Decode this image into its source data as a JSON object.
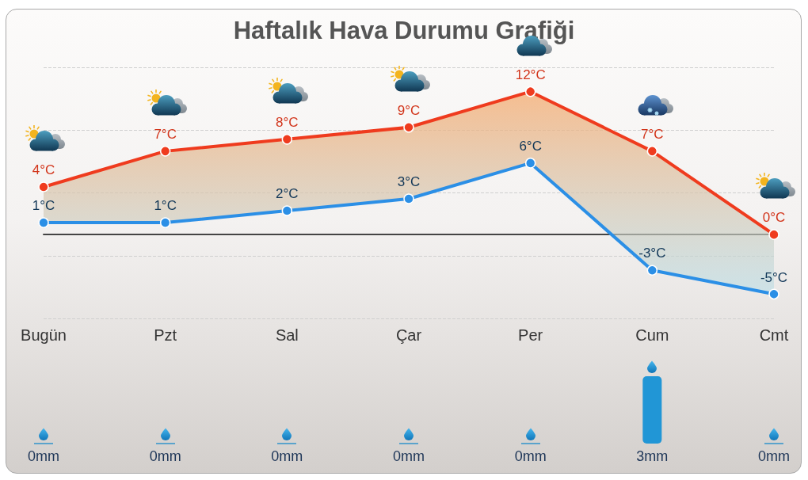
{
  "chart_data": [
    {
      "type": "line",
      "title": "Haftalık Hava Durumu Grafiği",
      "categories": [
        "Bugün",
        "Pzt",
        "Sal",
        "Çar",
        "Per",
        "Cum",
        "Cmt"
      ],
      "series": [
        {
          "color": "#ef3b1e",
          "values": [
            4,
            7,
            8,
            9,
            12,
            7,
            0
          ],
          "value_labels": [
            "4°C",
            "7°C",
            "8°C",
            "9°C",
            "12°C",
            "7°C",
            "0°C"
          ]
        },
        {
          "color": "#2b8fe6",
          "values": [
            1,
            1,
            2,
            3,
            6,
            -3,
            -5
          ],
          "value_labels": [
            "1°C",
            "1°C",
            "2°C",
            "3°C",
            "6°C",
            "-3°C",
            "-5°C"
          ]
        }
      ],
      "grid": "y",
      "tick_labels": "x",
      "marker": "circle",
      "line_style": "solid"
    },
    {
      "type": "bar",
      "categories": [
        null,
        null,
        null,
        null,
        null,
        null,
        null
      ],
      "values": [
        0,
        0,
        0,
        0,
        0,
        3,
        0
      ],
      "value_labels": [
        "0mm",
        "0mm",
        "0mm",
        "0mm",
        "0mm",
        "3mm",
        "0mm"
      ],
      "color": "#2196d6",
      "tick_labels": false
    }
  ]
}
